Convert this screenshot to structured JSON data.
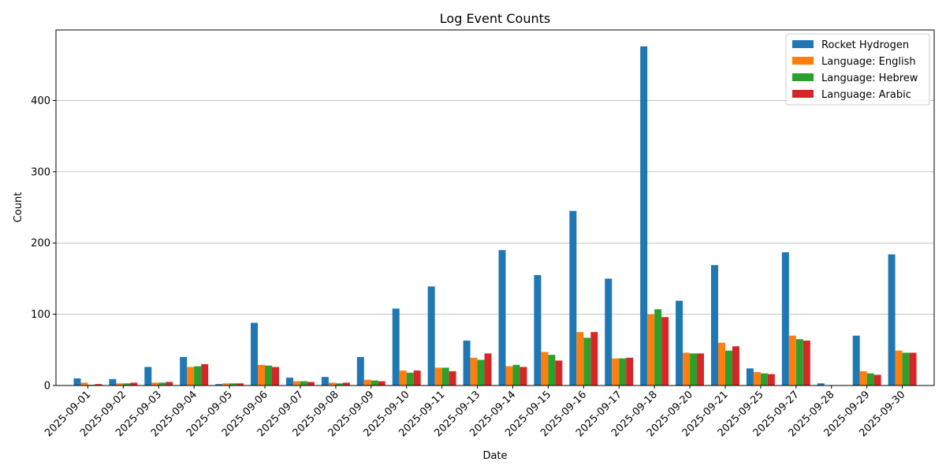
{
  "chart_data": {
    "type": "bar",
    "title": "Log Event Counts",
    "xlabel": "Date",
    "ylabel": "Count",
    "ylim": [
      0,
      500
    ],
    "yticks": [
      0,
      100,
      200,
      300,
      400
    ],
    "grid": "horizontal",
    "legend_position": "top-right",
    "categories": [
      "2025-09-01",
      "2025-09-02",
      "2025-09-03",
      "2025-09-04",
      "2025-09-05",
      "2025-09-06",
      "2025-09-07",
      "2025-09-08",
      "2025-09-09",
      "2025-09-10",
      "2025-09-11",
      "2025-09-13",
      "2025-09-14",
      "2025-09-15",
      "2025-09-16",
      "2025-09-17",
      "2025-09-18",
      "2025-09-20",
      "2025-09-21",
      "2025-09-25",
      "2025-09-27",
      "2025-09-28",
      "2025-09-29",
      "2025-09-30"
    ],
    "series": [
      {
        "name": "Rocket Hydrogen",
        "color": "#1f77b4",
        "values": [
          10,
          9,
          26,
          40,
          2,
          88,
          11,
          12,
          40,
          108,
          139,
          63,
          190,
          155,
          245,
          150,
          476,
          119,
          169,
          24,
          187,
          3,
          70,
          184
        ]
      },
      {
        "name": "Language: English",
        "color": "#ff7f0e",
        "values": [
          4,
          3,
          4,
          26,
          3,
          29,
          6,
          4,
          8,
          21,
          25,
          39,
          27,
          47,
          75,
          38,
          100,
          46,
          60,
          19,
          70,
          0,
          20,
          49
        ]
      },
      {
        "name": "Language: Hebrew",
        "color": "#2ca02c",
        "values": [
          1,
          3,
          4,
          27,
          3,
          28,
          6,
          3,
          7,
          18,
          25,
          36,
          29,
          43,
          67,
          38,
          107,
          45,
          49,
          17,
          65,
          0,
          17,
          46
        ]
      },
      {
        "name": "Language: Arabic",
        "color": "#d62728",
        "values": [
          2,
          4,
          5,
          30,
          3,
          26,
          5,
          4,
          6,
          21,
          20,
          45,
          26,
          35,
          75,
          39,
          96,
          45,
          55,
          16,
          63,
          0,
          15,
          46
        ]
      }
    ]
  }
}
